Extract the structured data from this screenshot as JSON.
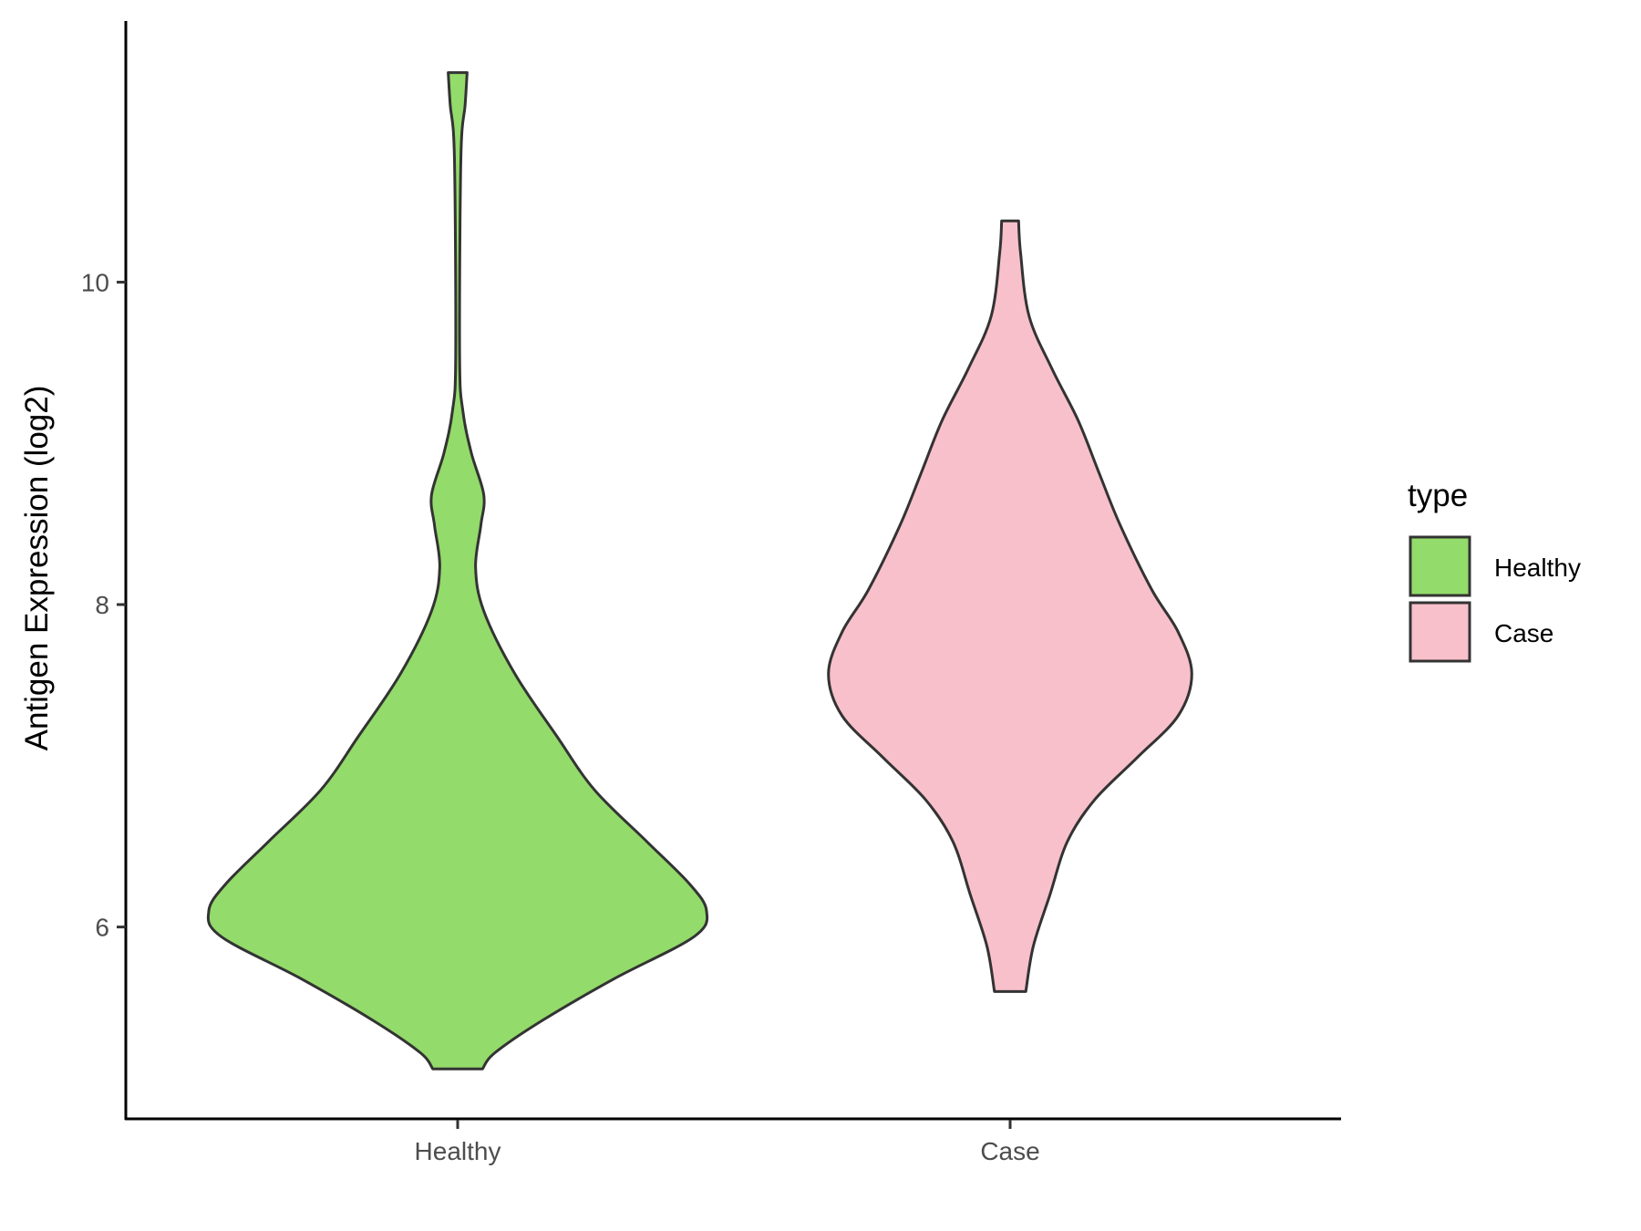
{
  "chart_data": {
    "type": "violin",
    "title": "",
    "xlabel": "",
    "ylabel": "Antigen Expression (log2)",
    "ylim": [
      4.81,
      11.62
    ],
    "yticks": [
      6,
      8,
      10
    ],
    "ytick_labels": [
      "6",
      "8",
      "10"
    ],
    "categories": [
      "Healthy",
      "Case"
    ],
    "grid": false,
    "legend": {
      "title": "type",
      "placement": "right",
      "entries": [
        "Healthy",
        "Case"
      ]
    },
    "series": [
      {
        "name": "Healthy",
        "color": "#93DB6A",
        "outline": "#333333",
        "min": 5.12,
        "max": 11.3,
        "density_profile": [
          [
            5.12,
            0.1
          ],
          [
            5.22,
            0.15
          ],
          [
            5.42,
            0.34
          ],
          [
            5.68,
            0.63
          ],
          [
            5.94,
            0.95
          ],
          [
            6.1,
            1.0
          ],
          [
            6.27,
            0.93
          ],
          [
            6.53,
            0.76
          ],
          [
            6.85,
            0.55
          ],
          [
            7.18,
            0.4
          ],
          [
            7.57,
            0.23
          ],
          [
            7.96,
            0.105
          ],
          [
            8.23,
            0.072
          ],
          [
            8.49,
            0.093
          ],
          [
            8.68,
            0.105
          ],
          [
            8.94,
            0.055
          ],
          [
            9.2,
            0.021
          ],
          [
            9.53,
            0.008
          ],
          [
            10.77,
            0.013
          ],
          [
            11.1,
            0.03
          ],
          [
            11.3,
            0.038
          ]
        ]
      },
      {
        "name": "Case",
        "color": "#F8C0CB",
        "outline": "#333333",
        "min": 5.6,
        "max": 10.38,
        "density_profile": [
          [
            5.6,
            0.063
          ],
          [
            5.88,
            0.093
          ],
          [
            6.2,
            0.16
          ],
          [
            6.53,
            0.23
          ],
          [
            6.79,
            0.34
          ],
          [
            7.05,
            0.51
          ],
          [
            7.31,
            0.675
          ],
          [
            7.57,
            0.73
          ],
          [
            7.83,
            0.675
          ],
          [
            8.09,
            0.57
          ],
          [
            8.49,
            0.443
          ],
          [
            8.81,
            0.359
          ],
          [
            9.14,
            0.274
          ],
          [
            9.46,
            0.169
          ],
          [
            9.79,
            0.076
          ],
          [
            10.18,
            0.042
          ],
          [
            10.38,
            0.034
          ]
        ]
      }
    ]
  }
}
